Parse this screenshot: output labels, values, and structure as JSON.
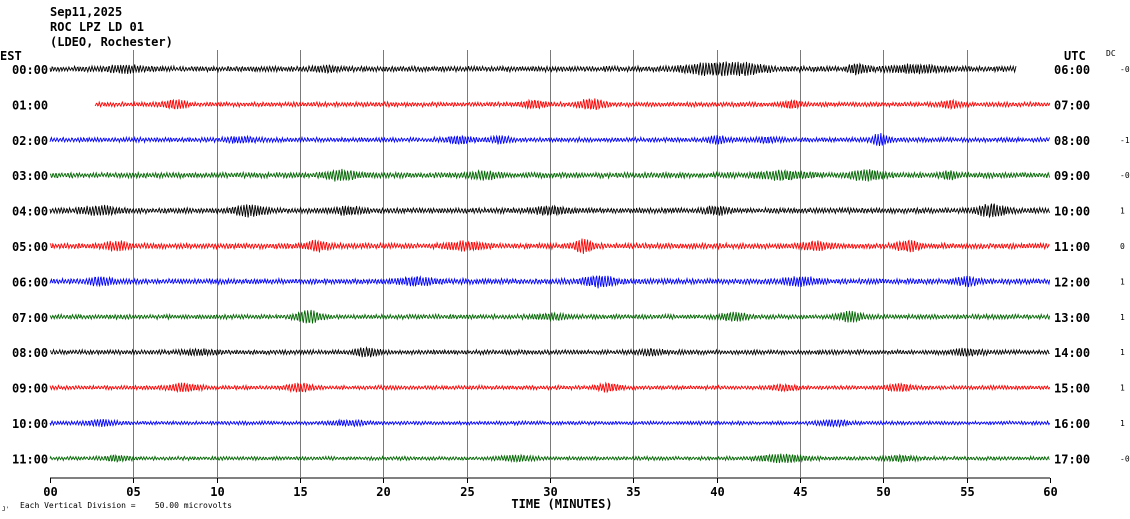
{
  "header": {
    "date": "Sep11,2025",
    "station": "ROC LPZ LD 01",
    "network": "(LDEO, Rochester)"
  },
  "left_tz": "EST",
  "right_tz": "UTC",
  "dc_label": "DC",
  "footer": {
    "x_axis_title": "TIME (MINUTES)",
    "scale_note": "Each Vertical Division =    50.00 microvolts",
    "corner_mark": "J'"
  },
  "chart_data": {
    "type": "line",
    "title": "",
    "xlabel": "TIME (MINUTES)",
    "ylabel": "",
    "xlim": [
      0,
      60
    ],
    "x_ticks": [
      "00",
      "05",
      "10",
      "15",
      "20",
      "25",
      "30",
      "35",
      "40",
      "45",
      "50",
      "55",
      "60"
    ],
    "grid": true,
    "traces": [
      {
        "est": "00:00",
        "utc": "06:00",
        "dc": "-0",
        "color": "#000000",
        "start_min": 0.0,
        "end_min": 58.0,
        "amp": 3,
        "bursts": [
          [
            4.5,
            1.2,
            2
          ],
          [
            16.5,
            0.8,
            2
          ],
          [
            40,
            1.8,
            5
          ],
          [
            48.5,
            0.6,
            4
          ],
          [
            52,
            1.5,
            3
          ],
          [
            42,
            1,
            3
          ]
        ]
      },
      {
        "est": "01:00",
        "utc": "07:00",
        "dc": "",
        "color": "#ff0000",
        "start_min": 2.7,
        "end_min": 60.0,
        "amp": 2.5,
        "bursts": [
          [
            7.5,
            0.8,
            3
          ],
          [
            29,
            0.7,
            3
          ],
          [
            32.5,
            0.8,
            4
          ],
          [
            44.5,
            0.6,
            3
          ],
          [
            54,
            0.6,
            3
          ]
        ]
      },
      {
        "est": "02:00",
        "utc": "08:00",
        "dc": "-1",
        "color": "#0000ff",
        "start_min": 0.0,
        "end_min": 60.0,
        "amp": 2.5,
        "bursts": [
          [
            11.5,
            0.9,
            2
          ],
          [
            24.5,
            0.8,
            3
          ],
          [
            27,
            0.6,
            3
          ],
          [
            40,
            0.5,
            3
          ],
          [
            49.8,
            0.5,
            5
          ],
          [
            43,
            0.6,
            2
          ]
        ]
      },
      {
        "est": "03:00",
        "utc": "09:00",
        "dc": "-0",
        "color": "#006600",
        "start_min": 0.0,
        "end_min": 60.0,
        "amp": 3,
        "bursts": [
          [
            17.5,
            1,
            4
          ],
          [
            26,
            0.8,
            3
          ],
          [
            44,
            1.5,
            3
          ],
          [
            49,
            1,
            4
          ],
          [
            54,
            0.5,
            3
          ]
        ]
      },
      {
        "est": "04:00",
        "utc": "10:00",
        "dc": "1",
        "color": "#000000",
        "start_min": 0.0,
        "end_min": 60.0,
        "amp": 3,
        "bursts": [
          [
            3,
            1.2,
            3
          ],
          [
            12,
            1,
            4
          ],
          [
            18,
            0.8,
            3
          ],
          [
            30,
            1,
            3
          ],
          [
            40,
            0.7,
            3
          ],
          [
            56.5,
            0.8,
            5
          ]
        ]
      },
      {
        "est": "05:00",
        "utc": "11:00",
        "dc": "0",
        "color": "#ff0000",
        "start_min": 0.0,
        "end_min": 60.0,
        "amp": 3,
        "bursts": [
          [
            4,
            0.8,
            3
          ],
          [
            16,
            0.7,
            4
          ],
          [
            25,
            1.2,
            3
          ],
          [
            32,
            0.6,
            5
          ],
          [
            51.5,
            0.7,
            4
          ],
          [
            46,
            0.8,
            3
          ]
        ]
      },
      {
        "est": "06:00",
        "utc": "12:00",
        "dc": "1",
        "color": "#0000ff",
        "start_min": 0.0,
        "end_min": 60.0,
        "amp": 3,
        "bursts": [
          [
            3,
            0.8,
            3
          ],
          [
            22,
            1,
            3
          ],
          [
            33,
            1,
            4
          ],
          [
            45,
            1,
            3
          ],
          [
            55,
            0.7,
            3
          ]
        ]
      },
      {
        "est": "07:00",
        "utc": "13:00",
        "dc": "1",
        "color": "#006600",
        "start_min": 0.0,
        "end_min": 60.0,
        "amp": 2.5,
        "bursts": [
          [
            15.5,
            0.8,
            5
          ],
          [
            30,
            1,
            2
          ],
          [
            41,
            0.8,
            3
          ],
          [
            48,
            0.7,
            4
          ]
        ]
      },
      {
        "est": "08:00",
        "utc": "14:00",
        "dc": "1",
        "color": "#000000",
        "start_min": 0.0,
        "end_min": 60.0,
        "amp": 2.5,
        "bursts": [
          [
            9,
            1,
            2
          ],
          [
            19,
            0.8,
            3
          ],
          [
            36,
            0.8,
            2
          ],
          [
            55,
            1,
            2
          ]
        ]
      },
      {
        "est": "09:00",
        "utc": "15:00",
        "dc": "1",
        "color": "#ff0000",
        "start_min": 0.0,
        "end_min": 60.0,
        "amp": 2.2,
        "bursts": [
          [
            8,
            1,
            3
          ],
          [
            15,
            0.8,
            3
          ],
          [
            33.5,
            0.7,
            3
          ],
          [
            44,
            0.8,
            2
          ],
          [
            51,
            0.7,
            3
          ]
        ]
      },
      {
        "est": "10:00",
        "utc": "16:00",
        "dc": "1",
        "color": "#0000ff",
        "start_min": 0.0,
        "end_min": 60.0,
        "amp": 2,
        "bursts": [
          [
            3,
            1,
            2
          ],
          [
            18,
            1,
            2
          ],
          [
            47,
            1,
            2
          ]
        ]
      },
      {
        "est": "11:00",
        "utc": "17:00",
        "dc": "-0",
        "color": "#006600",
        "start_min": 0.0,
        "end_min": 60.0,
        "amp": 2,
        "bursts": [
          [
            4,
            0.8,
            2
          ],
          [
            28,
            1,
            2
          ],
          [
            44,
            1.5,
            3
          ],
          [
            51,
            1,
            2
          ]
        ]
      }
    ]
  }
}
